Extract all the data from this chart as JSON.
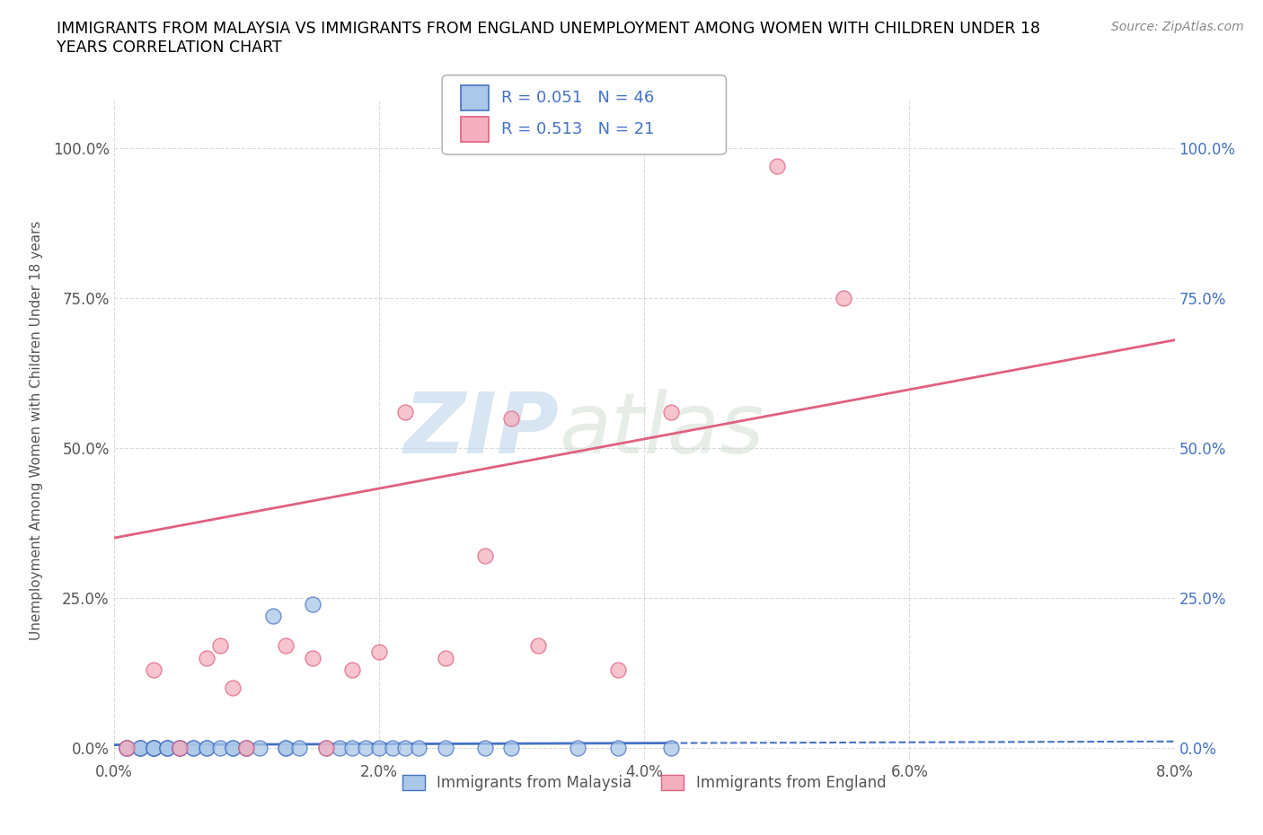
{
  "title": "IMMIGRANTS FROM MALAYSIA VS IMMIGRANTS FROM ENGLAND UNEMPLOYMENT AMONG WOMEN WITH CHILDREN UNDER 18\nYEARS CORRELATION CHART",
  "source": "Source: ZipAtlas.com",
  "ylabel": "Unemployment Among Women with Children Under 18 years",
  "xlim": [
    0.0,
    0.08
  ],
  "ylim": [
    -0.02,
    1.08
  ],
  "ytick_labels": [
    "0.0%",
    "25.0%",
    "50.0%",
    "75.0%",
    "100.0%"
  ],
  "ytick_values": [
    0.0,
    0.25,
    0.5,
    0.75,
    1.0
  ],
  "xtick_labels": [
    "0.0%",
    "2.0%",
    "4.0%",
    "6.0%",
    "8.0%"
  ],
  "xtick_values": [
    0.0,
    0.02,
    0.04,
    0.06,
    0.08
  ],
  "malaysia_color": "#aac8e8",
  "england_color": "#f5b0c0",
  "malaysia_line_color": "#4472c4",
  "england_line_color": "#e06080",
  "legend_malaysia_label": "Immigrants from Malaysia",
  "legend_england_label": "Immigrants from England",
  "malaysia_R": "0.051",
  "malaysia_N": "46",
  "england_R": "0.513",
  "england_N": "21",
  "watermark_zip": "ZIP",
  "watermark_atlas": "atlas",
  "malaysia_scatter_x": [
    0.001,
    0.001,
    0.001,
    0.002,
    0.002,
    0.002,
    0.003,
    0.003,
    0.003,
    0.003,
    0.003,
    0.004,
    0.004,
    0.004,
    0.005,
    0.005,
    0.005,
    0.006,
    0.006,
    0.007,
    0.007,
    0.008,
    0.009,
    0.009,
    0.01,
    0.01,
    0.011,
    0.012,
    0.013,
    0.013,
    0.014,
    0.015,
    0.016,
    0.017,
    0.018,
    0.019,
    0.02,
    0.021,
    0.022,
    0.023,
    0.025,
    0.028,
    0.03,
    0.035,
    0.038,
    0.042
  ],
  "malaysia_scatter_y": [
    0.0,
    0.0,
    0.0,
    0.0,
    0.0,
    0.0,
    0.0,
    0.0,
    0.0,
    0.0,
    0.0,
    0.0,
    0.0,
    0.0,
    0.0,
    0.0,
    0.0,
    0.0,
    0.0,
    0.0,
    0.0,
    0.0,
    0.0,
    0.0,
    0.0,
    0.0,
    0.0,
    0.22,
    0.0,
    0.0,
    0.0,
    0.24,
    0.0,
    0.0,
    0.0,
    0.0,
    0.0,
    0.0,
    0.0,
    0.0,
    0.0,
    0.0,
    0.0,
    0.0,
    0.0,
    0.0
  ],
  "england_scatter_x": [
    0.001,
    0.003,
    0.005,
    0.007,
    0.008,
    0.009,
    0.01,
    0.013,
    0.015,
    0.016,
    0.018,
    0.02,
    0.022,
    0.025,
    0.028,
    0.03,
    0.032,
    0.038,
    0.042,
    0.05,
    0.055
  ],
  "england_scatter_y": [
    0.0,
    0.13,
    0.0,
    0.15,
    0.17,
    0.1,
    0.0,
    0.17,
    0.15,
    0.0,
    0.13,
    0.16,
    0.56,
    0.15,
    0.32,
    0.55,
    0.17,
    0.13,
    0.56,
    0.97,
    0.75
  ],
  "england_trend_x0": 0.0,
  "england_trend_y0": 0.35,
  "england_trend_x1": 0.08,
  "england_trend_y1": 0.68,
  "malaysia_trend_x0": 0.0,
  "malaysia_trend_y0": 0.005,
  "malaysia_trend_x1": 0.042,
  "malaysia_trend_y1": 0.008,
  "background_color": "#ffffff",
  "grid_color": "#cccccc"
}
